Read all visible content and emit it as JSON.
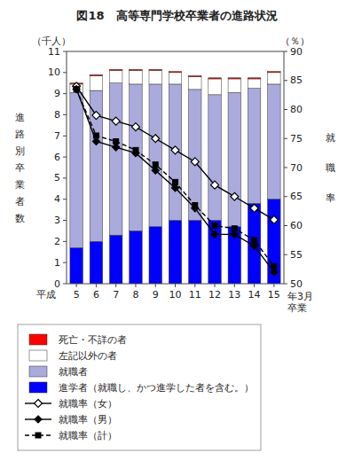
{
  "chart_data": {
    "type": "bar",
    "stacked": true,
    "title": "図18　高等専門学校卒業者の進路状況",
    "x_label": "平成",
    "x_label_right": "年3月\n卒業",
    "y_unit": "（千人）",
    "y2_unit": "（％）",
    "y_label": "進\n路\n別\n卒\n業\n者\n数",
    "y2_label": [
      "就",
      "職",
      "率"
    ],
    "categories": [
      "5",
      "6",
      "7",
      "8",
      "9",
      "10",
      "11",
      "12",
      "13",
      "14",
      "15"
    ],
    "ylim": [
      0,
      11
    ],
    "yticks": [
      0,
      1,
      2,
      3,
      4,
      5,
      6,
      7,
      8,
      9,
      10,
      11
    ],
    "y2lim": [
      50,
      90
    ],
    "y2ticks": [
      50,
      55,
      60,
      65,
      70,
      75,
      80,
      85,
      90
    ],
    "grid": false,
    "legend": "bottom",
    "series": [
      {
        "name": "進学者（就職し、かつ進学した者を含む。）",
        "color": "#0000ff",
        "values": [
          1.7,
          2.0,
          2.3,
          2.5,
          2.7,
          3.0,
          3.0,
          3.0,
          2.7,
          3.8,
          4.0
        ]
      },
      {
        "name": "就職者",
        "color": "#aaaadd",
        "values": [
          7.35,
          7.15,
          7.2,
          6.95,
          6.75,
          6.45,
          6.2,
          5.95,
          6.35,
          5.45,
          5.45
        ]
      },
      {
        "name": "左記以外の者",
        "color": "#ffffff",
        "values": [
          0.4,
          0.7,
          0.6,
          0.65,
          0.65,
          0.55,
          0.6,
          0.75,
          0.65,
          0.45,
          0.55
        ]
      },
      {
        "name": "死亡・不詳の者",
        "color": "#ff0000",
        "values": [
          0.05,
          0.05,
          0.05,
          0.05,
          0.05,
          0.05,
          0.05,
          0.05,
          0.05,
          0.05,
          0.05
        ]
      },
      {
        "name": "就職率（女）",
        "type": "line",
        "axis": "y2",
        "color": "#000000",
        "marker": "diamond-open",
        "line_style": "solid",
        "values": [
          84.0,
          79.0,
          78.0,
          77.0,
          75.0,
          73.0,
          71.0,
          67.0,
          65.0,
          63.0,
          61.0
        ]
      },
      {
        "name": "就職率（男）",
        "type": "line",
        "axis": "y2",
        "color": "#000000",
        "marker": "diamond",
        "line_style": "solid",
        "values": [
          83.5,
          74.5,
          73.5,
          72.5,
          69.5,
          66.5,
          63.0,
          58.5,
          58.5,
          56.5,
          52.0
        ]
      },
      {
        "name": "就職率（計）",
        "type": "line",
        "axis": "y2",
        "color": "#000000",
        "marker": "square",
        "line_style": "dashed",
        "values": [
          83.5,
          75.5,
          74.5,
          73.0,
          70.5,
          67.5,
          63.5,
          60.0,
          59.5,
          57.5,
          53.0
        ]
      }
    ]
  }
}
